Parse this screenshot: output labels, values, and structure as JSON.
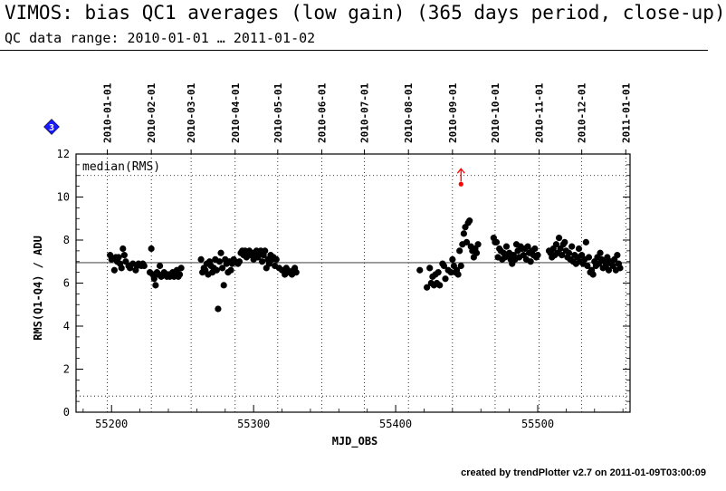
{
  "header": {
    "title": "VIMOS: bias QC1 averages (low gain) (365 days period, close-up)",
    "subtitle": "QC data range: 2010-01-01 … 2011-01-02"
  },
  "footer": {
    "text": "created by trendPlotter v2.7 on 2011-01-09T03:00:09"
  },
  "badge": {
    "label": "3",
    "color": "#1a1aff"
  },
  "chart_data": {
    "type": "scatter",
    "xlabel": "MJD_OBS",
    "ylabel": "RMS(Q1-Q4) / ADU",
    "annotation": "median(RMS)",
    "xlim": [
      55175,
      55565
    ],
    "ylim": [
      0,
      12
    ],
    "x_ticks": [
      55200,
      55300,
      55400,
      55500
    ],
    "y_ticks": [
      0,
      2,
      4,
      6,
      8,
      10,
      12
    ],
    "median": 6.95,
    "thresholds": [
      0.75,
      11.0
    ],
    "top_axis_dates": [
      {
        "label": "2010-01-01",
        "mjd": 55197
      },
      {
        "label": "2010-02-01",
        "mjd": 55228
      },
      {
        "label": "2010-03-01",
        "mjd": 55256
      },
      {
        "label": "2010-04-01",
        "mjd": 55287
      },
      {
        "label": "2010-05-01",
        "mjd": 55317
      },
      {
        "label": "2010-06-01",
        "mjd": 55348
      },
      {
        "label": "2010-07-01",
        "mjd": 55378
      },
      {
        "label": "2010-08-01",
        "mjd": 55409
      },
      {
        "label": "2010-09-01",
        "mjd": 55440
      },
      {
        "label": "2010-10-01",
        "mjd": 55470
      },
      {
        "label": "2010-11-01",
        "mjd": 55501
      },
      {
        "label": "2010-12-01",
        "mjd": 55531
      },
      {
        "label": "2011-01-01",
        "mjd": 55562
      }
    ],
    "outlier": {
      "x": 55446,
      "y": 10.6,
      "color": "#ff0000"
    },
    "series": [
      {
        "color": "#000000",
        "points": [
          [
            55199,
            7.3
          ],
          [
            55200,
            7.1
          ],
          [
            55202,
            6.6
          ],
          [
            55203,
            7.2
          ],
          [
            55204,
            7.0
          ],
          [
            55205,
            7.2
          ],
          [
            55206,
            6.9
          ],
          [
            55207,
            6.7
          ],
          [
            55208,
            7.6
          ],
          [
            55209,
            7.3
          ],
          [
            55210,
            7.0
          ],
          [
            55212,
            6.8
          ],
          [
            55213,
            6.7
          ],
          [
            55215,
            6.9
          ],
          [
            55217,
            6.6
          ],
          [
            55218,
            6.8
          ],
          [
            55219,
            6.9
          ],
          [
            55221,
            6.8
          ],
          [
            55222,
            6.9
          ],
          [
            55223,
            6.8
          ],
          [
            55227,
            6.5
          ],
          [
            55228,
            7.6
          ],
          [
            55229,
            6.4
          ],
          [
            55230,
            6.2
          ],
          [
            55231,
            5.9
          ],
          [
            55232,
            6.5
          ],
          [
            55233,
            6.4
          ],
          [
            55234,
            6.8
          ],
          [
            55235,
            6.3
          ],
          [
            55236,
            6.4
          ],
          [
            55237,
            6.5
          ],
          [
            55238,
            6.4
          ],
          [
            55239,
            6.3
          ],
          [
            55240,
            6.4
          ],
          [
            55241,
            6.3
          ],
          [
            55242,
            6.4
          ],
          [
            55243,
            6.5
          ],
          [
            55244,
            6.3
          ],
          [
            55245,
            6.4
          ],
          [
            55246,
            6.6
          ],
          [
            55247,
            6.3
          ],
          [
            55248,
            6.4
          ],
          [
            55249,
            6.7
          ],
          [
            55263,
            7.1
          ],
          [
            55264,
            6.5
          ],
          [
            55265,
            6.7
          ],
          [
            55266,
            6.6
          ],
          [
            55267,
            6.9
          ],
          [
            55268,
            6.4
          ],
          [
            55269,
            7.0
          ],
          [
            55270,
            6.8
          ],
          [
            55271,
            6.5
          ],
          [
            55272,
            6.7
          ],
          [
            55273,
            7.1
          ],
          [
            55274,
            6.6
          ],
          [
            55275,
            4.8
          ],
          [
            55276,
            7.0
          ],
          [
            55277,
            7.4
          ],
          [
            55278,
            6.7
          ],
          [
            55279,
            5.9
          ],
          [
            55280,
            7.1
          ],
          [
            55281,
            6.9
          ],
          [
            55282,
            6.5
          ],
          [
            55283,
            7.0
          ],
          [
            55284,
            6.6
          ],
          [
            55285,
            6.9
          ],
          [
            55286,
            7.1
          ],
          [
            55287,
            7.0
          ],
          [
            55289,
            6.9
          ],
          [
            55290,
            7.0
          ],
          [
            55291,
            7.4
          ],
          [
            55292,
            7.5
          ],
          [
            55293,
            7.3
          ],
          [
            55294,
            7.5
          ],
          [
            55295,
            7.2
          ],
          [
            55296,
            7.4
          ],
          [
            55297,
            7.5
          ],
          [
            55298,
            7.3
          ],
          [
            55299,
            7.4
          ],
          [
            55300,
            7.1
          ],
          [
            55301,
            7.3
          ],
          [
            55302,
            7.5
          ],
          [
            55303,
            7.2
          ],
          [
            55304,
            7.4
          ],
          [
            55305,
            7.5
          ],
          [
            55306,
            7.0
          ],
          [
            55307,
            7.3
          ],
          [
            55308,
            7.5
          ],
          [
            55309,
            6.7
          ],
          [
            55310,
            7.1
          ],
          [
            55311,
            6.9
          ],
          [
            55312,
            7.3
          ],
          [
            55313,
            7.1
          ],
          [
            55314,
            7.2
          ],
          [
            55315,
            6.8
          ],
          [
            55316,
            7.1
          ],
          [
            55318,
            6.7
          ],
          [
            55320,
            6.6
          ],
          [
            55322,
            6.4
          ],
          [
            55323,
            6.7
          ],
          [
            55324,
            6.6
          ],
          [
            55325,
            6.5
          ],
          [
            55327,
            6.4
          ],
          [
            55328,
            6.6
          ],
          [
            55329,
            6.7
          ],
          [
            55330,
            6.5
          ],
          [
            55417,
            6.6
          ],
          [
            55422,
            5.8
          ],
          [
            55424,
            6.7
          ],
          [
            55425,
            6.0
          ],
          [
            55426,
            6.3
          ],
          [
            55427,
            5.9
          ],
          [
            55428,
            6.4
          ],
          [
            55429,
            6.0
          ],
          [
            55430,
            6.5
          ],
          [
            55431,
            5.9
          ],
          [
            55433,
            6.9
          ],
          [
            55434,
            6.8
          ],
          [
            55435,
            6.2
          ],
          [
            55437,
            6.6
          ],
          [
            55439,
            6.5
          ],
          [
            55440,
            7.1
          ],
          [
            55441,
            6.8
          ],
          [
            55442,
            6.5
          ],
          [
            55443,
            6.6
          ],
          [
            55444,
            6.4
          ],
          [
            55445,
            7.5
          ],
          [
            55446,
            6.8
          ],
          [
            55447,
            7.8
          ],
          [
            55448,
            8.3
          ],
          [
            55449,
            8.6
          ],
          [
            55450,
            7.9
          ],
          [
            55451,
            8.8
          ],
          [
            55452,
            8.9
          ],
          [
            55453,
            7.7
          ],
          [
            55454,
            7.5
          ],
          [
            55455,
            7.2
          ],
          [
            55456,
            7.6
          ],
          [
            55457,
            7.4
          ],
          [
            55458,
            7.8
          ],
          [
            55469,
            8.1
          ],
          [
            55470,
            7.9
          ],
          [
            55471,
            7.9
          ],
          [
            55472,
            7.2
          ],
          [
            55473,
            7.6
          ],
          [
            55474,
            7.5
          ],
          [
            55475,
            7.1
          ],
          [
            55476,
            7.4
          ],
          [
            55477,
            7.2
          ],
          [
            55478,
            7.7
          ],
          [
            55479,
            7.3
          ],
          [
            55480,
            7.4
          ],
          [
            55481,
            7.1
          ],
          [
            55482,
            6.9
          ],
          [
            55483,
            7.3
          ],
          [
            55484,
            7.1
          ],
          [
            55485,
            7.8
          ],
          [
            55486,
            7.5
          ],
          [
            55487,
            7.2
          ],
          [
            55488,
            7.7
          ],
          [
            55489,
            7.6
          ],
          [
            55490,
            7.3
          ],
          [
            55491,
            7.6
          ],
          [
            55492,
            7.1
          ],
          [
            55493,
            7.7
          ],
          [
            55494,
            7.4
          ],
          [
            55495,
            7.0
          ],
          [
            55496,
            7.5
          ],
          [
            55497,
            7.3
          ],
          [
            55498,
            7.6
          ],
          [
            55499,
            7.2
          ],
          [
            55500,
            7.3
          ],
          [
            55508,
            7.5
          ],
          [
            55509,
            7.4
          ],
          [
            55510,
            7.2
          ],
          [
            55511,
            7.6
          ],
          [
            55512,
            7.3
          ],
          [
            55513,
            7.8
          ],
          [
            55514,
            7.4
          ],
          [
            55515,
            8.1
          ],
          [
            55516,
            7.6
          ],
          [
            55517,
            7.3
          ],
          [
            55518,
            7.8
          ],
          [
            55519,
            7.9
          ],
          [
            55520,
            7.5
          ],
          [
            55521,
            7.2
          ],
          [
            55522,
            7.4
          ],
          [
            55523,
            7.1
          ],
          [
            55524,
            7.7
          ],
          [
            55525,
            7.0
          ],
          [
            55526,
            7.3
          ],
          [
            55527,
            6.9
          ],
          [
            55528,
            7.2
          ],
          [
            55529,
            7.6
          ],
          [
            55530,
            7.0
          ],
          [
            55531,
            7.3
          ],
          [
            55532,
            6.9
          ],
          [
            55533,
            7.1
          ],
          [
            55534,
            7.9
          ],
          [
            55535,
            6.8
          ],
          [
            55536,
            7.2
          ],
          [
            55537,
            6.5
          ],
          [
            55538,
            6.6
          ],
          [
            55539,
            6.4
          ],
          [
            55540,
            7.0
          ],
          [
            55541,
            6.8
          ],
          [
            55542,
            7.2
          ],
          [
            55543,
            6.9
          ],
          [
            55544,
            7.4
          ],
          [
            55545,
            7.1
          ],
          [
            55546,
            6.7
          ],
          [
            55547,
            7.0
          ],
          [
            55548,
            6.8
          ],
          [
            55549,
            7.2
          ],
          [
            55550,
            6.6
          ],
          [
            55551,
            7.0
          ],
          [
            55552,
            6.9
          ],
          [
            55553,
            6.8
          ],
          [
            55554,
            7.1
          ],
          [
            55555,
            6.6
          ],
          [
            55556,
            7.3
          ],
          [
            55557,
            6.9
          ],
          [
            55558,
            6.7
          ]
        ]
      }
    ]
  }
}
